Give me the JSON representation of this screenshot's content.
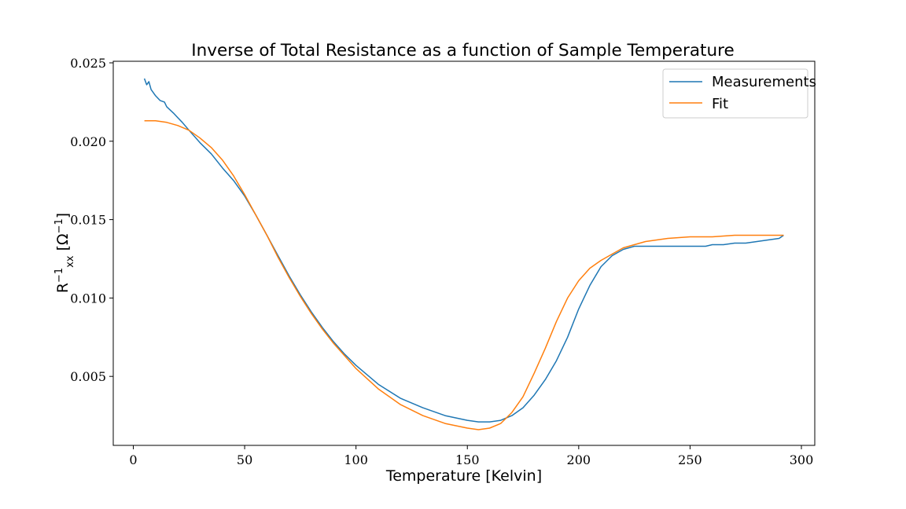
{
  "chart_data": {
    "type": "line",
    "title": "Inverse of Total Resistance as a function of Sample Temperature",
    "xlabel": "Temperature [Kelvin]",
    "ylabel": {
      "base": "R",
      "superscript": "−1",
      "subscript": "xx",
      "unit_open": " [Ω",
      "unit_superscript": "−1",
      "unit_close": "]"
    },
    "xlim": [
      -9,
      306
    ],
    "ylim": [
      0.0006,
      0.0251
    ],
    "xticks": [
      0,
      50,
      100,
      150,
      200,
      250,
      300
    ],
    "xtick_labels": [
      "0",
      "50",
      "100",
      "150",
      "200",
      "250",
      "300"
    ],
    "yticks": [
      0.005,
      0.01,
      0.015,
      0.02,
      0.025
    ],
    "ytick_labels": [
      "0.005",
      "0.010",
      "0.015",
      "0.020",
      "0.025"
    ],
    "grid": false,
    "legend_position": "top-right",
    "series": [
      {
        "name": "Measurements",
        "color": "#1f77b4",
        "points": [
          [
            5,
            0.024
          ],
          [
            6,
            0.0236
          ],
          [
            7,
            0.0238
          ],
          [
            8,
            0.0233
          ],
          [
            10,
            0.0229
          ],
          [
            12,
            0.0226
          ],
          [
            14,
            0.0225
          ],
          [
            15,
            0.0222
          ],
          [
            18,
            0.0218
          ],
          [
            20,
            0.0215
          ],
          [
            22,
            0.0212
          ],
          [
            25,
            0.0207
          ],
          [
            30,
            0.0199
          ],
          [
            35,
            0.0192
          ],
          [
            40,
            0.0183
          ],
          [
            45,
            0.0175
          ],
          [
            50,
            0.0165
          ],
          [
            55,
            0.0153
          ],
          [
            60,
            0.014
          ],
          [
            65,
            0.0127
          ],
          [
            70,
            0.0114
          ],
          [
            75,
            0.0102
          ],
          [
            80,
            0.0091
          ],
          [
            85,
            0.0081
          ],
          [
            90,
            0.0072
          ],
          [
            95,
            0.0064
          ],
          [
            100,
            0.0057
          ],
          [
            110,
            0.0045
          ],
          [
            120,
            0.0036
          ],
          [
            130,
            0.003
          ],
          [
            140,
            0.0025
          ],
          [
            150,
            0.0022
          ],
          [
            155,
            0.0021
          ],
          [
            160,
            0.0021
          ],
          [
            165,
            0.0022
          ],
          [
            170,
            0.0025
          ],
          [
            175,
            0.003
          ],
          [
            180,
            0.0038
          ],
          [
            185,
            0.0048
          ],
          [
            190,
            0.006
          ],
          [
            195,
            0.0075
          ],
          [
            200,
            0.0093
          ],
          [
            205,
            0.0108
          ],
          [
            210,
            0.012
          ],
          [
            215,
            0.0127
          ],
          [
            220,
            0.0131
          ],
          [
            225,
            0.0133
          ],
          [
            230,
            0.0133
          ],
          [
            240,
            0.0133
          ],
          [
            250,
            0.0133
          ],
          [
            257,
            0.0133
          ],
          [
            260,
            0.0134
          ],
          [
            265,
            0.0134
          ],
          [
            270,
            0.0135
          ],
          [
            275,
            0.0135
          ],
          [
            280,
            0.0136
          ],
          [
            285,
            0.0137
          ],
          [
            290,
            0.0138
          ],
          [
            292,
            0.014
          ]
        ]
      },
      {
        "name": "Fit",
        "color": "#ff7f0e",
        "points": [
          [
            5,
            0.0213
          ],
          [
            10,
            0.0213
          ],
          [
            15,
            0.0212
          ],
          [
            20,
            0.021
          ],
          [
            25,
            0.0207
          ],
          [
            30,
            0.0202
          ],
          [
            35,
            0.0196
          ],
          [
            40,
            0.0188
          ],
          [
            45,
            0.0178
          ],
          [
            50,
            0.0166
          ],
          [
            55,
            0.0153
          ],
          [
            60,
            0.014
          ],
          [
            65,
            0.0126
          ],
          [
            70,
            0.0113
          ],
          [
            75,
            0.0101
          ],
          [
            80,
            0.009
          ],
          [
            85,
            0.008
          ],
          [
            90,
            0.0071
          ],
          [
            95,
            0.0063
          ],
          [
            100,
            0.0055
          ],
          [
            110,
            0.0042
          ],
          [
            120,
            0.0032
          ],
          [
            130,
            0.0025
          ],
          [
            140,
            0.002
          ],
          [
            150,
            0.0017
          ],
          [
            155,
            0.0016
          ],
          [
            160,
            0.0017
          ],
          [
            165,
            0.002
          ],
          [
            170,
            0.0027
          ],
          [
            175,
            0.0037
          ],
          [
            180,
            0.0052
          ],
          [
            185,
            0.0068
          ],
          [
            190,
            0.0085
          ],
          [
            195,
            0.01
          ],
          [
            200,
            0.0111
          ],
          [
            205,
            0.0119
          ],
          [
            210,
            0.0124
          ],
          [
            215,
            0.0128
          ],
          [
            220,
            0.0132
          ],
          [
            225,
            0.0134
          ],
          [
            230,
            0.0136
          ],
          [
            240,
            0.0138
          ],
          [
            250,
            0.0139
          ],
          [
            260,
            0.0139
          ],
          [
            270,
            0.014
          ],
          [
            280,
            0.014
          ],
          [
            292,
            0.014
          ]
        ]
      }
    ]
  }
}
